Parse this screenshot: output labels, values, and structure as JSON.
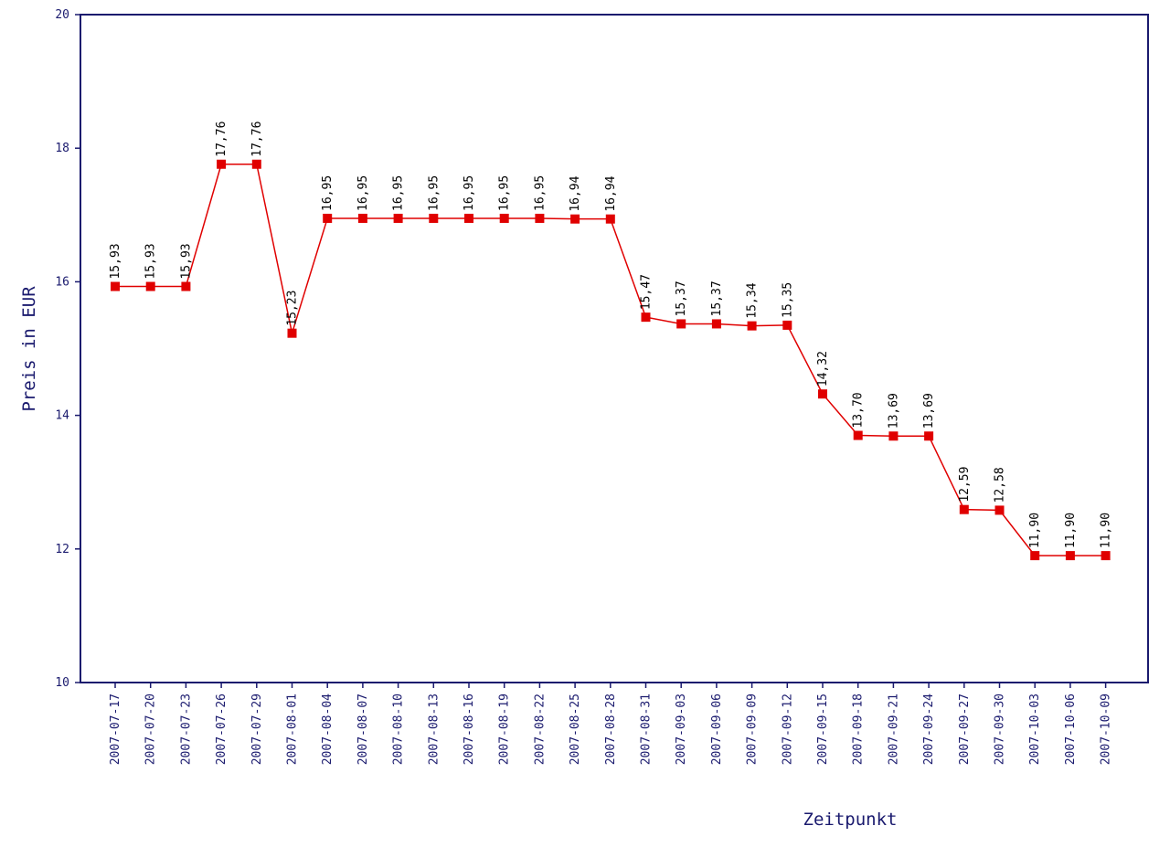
{
  "chart_data": {
    "type": "line",
    "title": "",
    "xlabel": "Zeitpunkt",
    "ylabel": "Preis in EUR",
    "ylim": [
      10,
      20
    ],
    "yticks": [
      10,
      12,
      14,
      16,
      18,
      20
    ],
    "grid": false,
    "colors": {
      "series": "#e00000",
      "axis": "#1a1a6e",
      "label": "#000000"
    },
    "categories": [
      "2007-07-17",
      "2007-07-20",
      "2007-07-23",
      "2007-07-26",
      "2007-07-29",
      "2007-08-01",
      "2007-08-04",
      "2007-08-07",
      "2007-08-10",
      "2007-08-13",
      "2007-08-16",
      "2007-08-19",
      "2007-08-22",
      "2007-08-25",
      "2007-08-28",
      "2007-08-31",
      "2007-09-03",
      "2007-09-06",
      "2007-09-09",
      "2007-09-12",
      "2007-09-15",
      "2007-09-18",
      "2007-09-21",
      "2007-09-24",
      "2007-09-27",
      "2007-09-30",
      "2007-10-03",
      "2007-10-06",
      "2007-10-09"
    ],
    "series": [
      {
        "values": [
          15.93,
          15.93,
          15.93,
          17.76,
          17.76,
          15.23,
          16.95,
          16.95,
          16.95,
          16.95,
          16.95,
          16.95,
          16.95,
          16.94,
          16.94,
          15.47,
          15.37,
          15.37,
          15.34,
          15.35,
          14.32,
          13.7,
          13.69,
          13.69,
          12.59,
          12.58,
          11.9,
          11.9,
          11.9
        ],
        "labels": [
          "15,93",
          "15,93",
          "15,93",
          "17,76",
          "17,76",
          "15,23",
          "16,95",
          "16,95",
          "16,95",
          "16,95",
          "16,95",
          "16,95",
          "16,95",
          "16,94",
          "16,94",
          "15,47",
          "15,37",
          "15,37",
          "15,34",
          "15,35",
          "14,32",
          "13,70",
          "13,69",
          "13,69",
          "12,59",
          "12,58",
          "11,90",
          "11,90",
          "11,90"
        ]
      }
    ]
  }
}
